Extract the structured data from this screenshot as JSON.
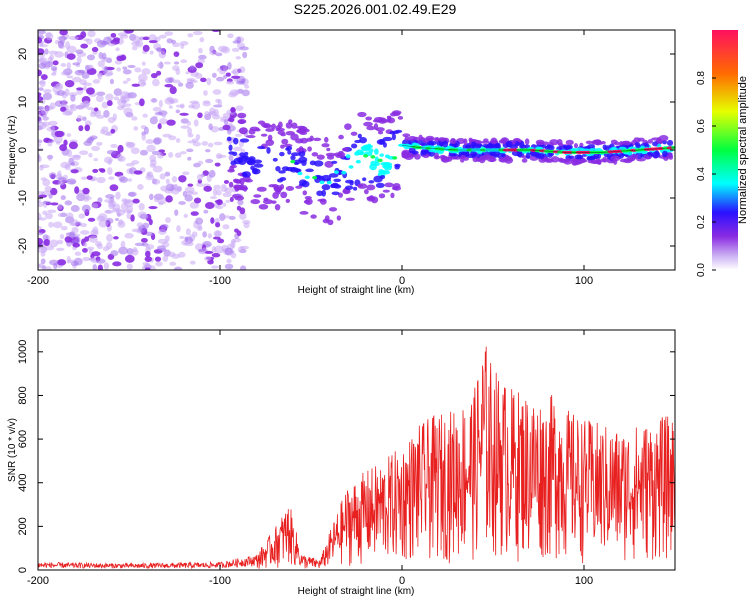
{
  "figure_title": "S225.2026.001.02.49.E29",
  "chart_data": [
    {
      "type": "heatmap",
      "title": "S225.2026.001.02.49.E29",
      "xlabel": "Height of straight line (km)",
      "ylabel": "Frequency (Hz)",
      "xlim": [
        -200,
        150
      ],
      "ylim": [
        -25,
        25
      ],
      "xticks": [
        -200,
        -100,
        0,
        100
      ],
      "yticks": [
        -20,
        -10,
        0,
        10,
        20
      ],
      "colorbar": {
        "label": "Normalized spectral amplitude",
        "range": [
          0,
          1
        ],
        "ticks": [
          "0.0",
          "0.2",
          "0.4",
          "0.6",
          "0.8"
        ],
        "tick_values": [
          0.0,
          0.2,
          0.4,
          0.6,
          0.8
        ],
        "colormap": [
          "#ffffff",
          "#c9a8f5",
          "#8a2be2",
          "#2a10ff",
          "#00ffff",
          "#00ff40",
          "#e6ff00",
          "#ff6a00",
          "#ff1060"
        ]
      },
      "ridge": [
        {
          "x": -90,
          "y": -1
        },
        {
          "x": -75,
          "y": -3
        },
        {
          "x": -60,
          "y": -3
        },
        {
          "x": -50,
          "y": -5
        },
        {
          "x": -40,
          "y": -7
        },
        {
          "x": -30,
          "y": -4
        },
        {
          "x": -20,
          "y": -1
        },
        {
          "x": -10,
          "y": -3
        },
        {
          "x": 0,
          "y": 1
        },
        {
          "x": 10,
          "y": 0.5
        },
        {
          "x": 30,
          "y": 0
        },
        {
          "x": 50,
          "y": 0
        },
        {
          "x": 70,
          "y": 0
        },
        {
          "x": 90,
          "y": -0.5
        },
        {
          "x": 110,
          "y": -0.5
        },
        {
          "x": 130,
          "y": 0
        },
        {
          "x": 150,
          "y": 0.5
        }
      ]
    },
    {
      "type": "line",
      "xlabel": "Height of straight line (km)",
      "ylabel": "SNR (10 * v/v)",
      "xlim": [
        -200,
        150
      ],
      "ylim": [
        0,
        1100
      ],
      "xticks": [
        -200,
        -100,
        0,
        100
      ],
      "yticks": [
        0,
        200,
        400,
        600,
        800,
        1000
      ],
      "series": [
        {
          "name": "SNR",
          "color": "#e82020",
          "x": [
            -200,
            -150,
            -100,
            -80,
            -70,
            -62,
            -55,
            -45,
            -38,
            -30,
            -20,
            -10,
            0,
            10,
            20,
            30,
            40,
            45,
            50,
            60,
            70,
            80,
            85,
            90,
            100,
            110,
            120,
            130,
            140,
            150
          ],
          "y": [
            30,
            25,
            30,
            60,
            160,
            260,
            60,
            40,
            180,
            320,
            380,
            420,
            480,
            560,
            600,
            620,
            700,
            900,
            780,
            700,
            680,
            650,
            700,
            620,
            580,
            560,
            540,
            560,
            580,
            600
          ]
        }
      ]
    }
  ]
}
